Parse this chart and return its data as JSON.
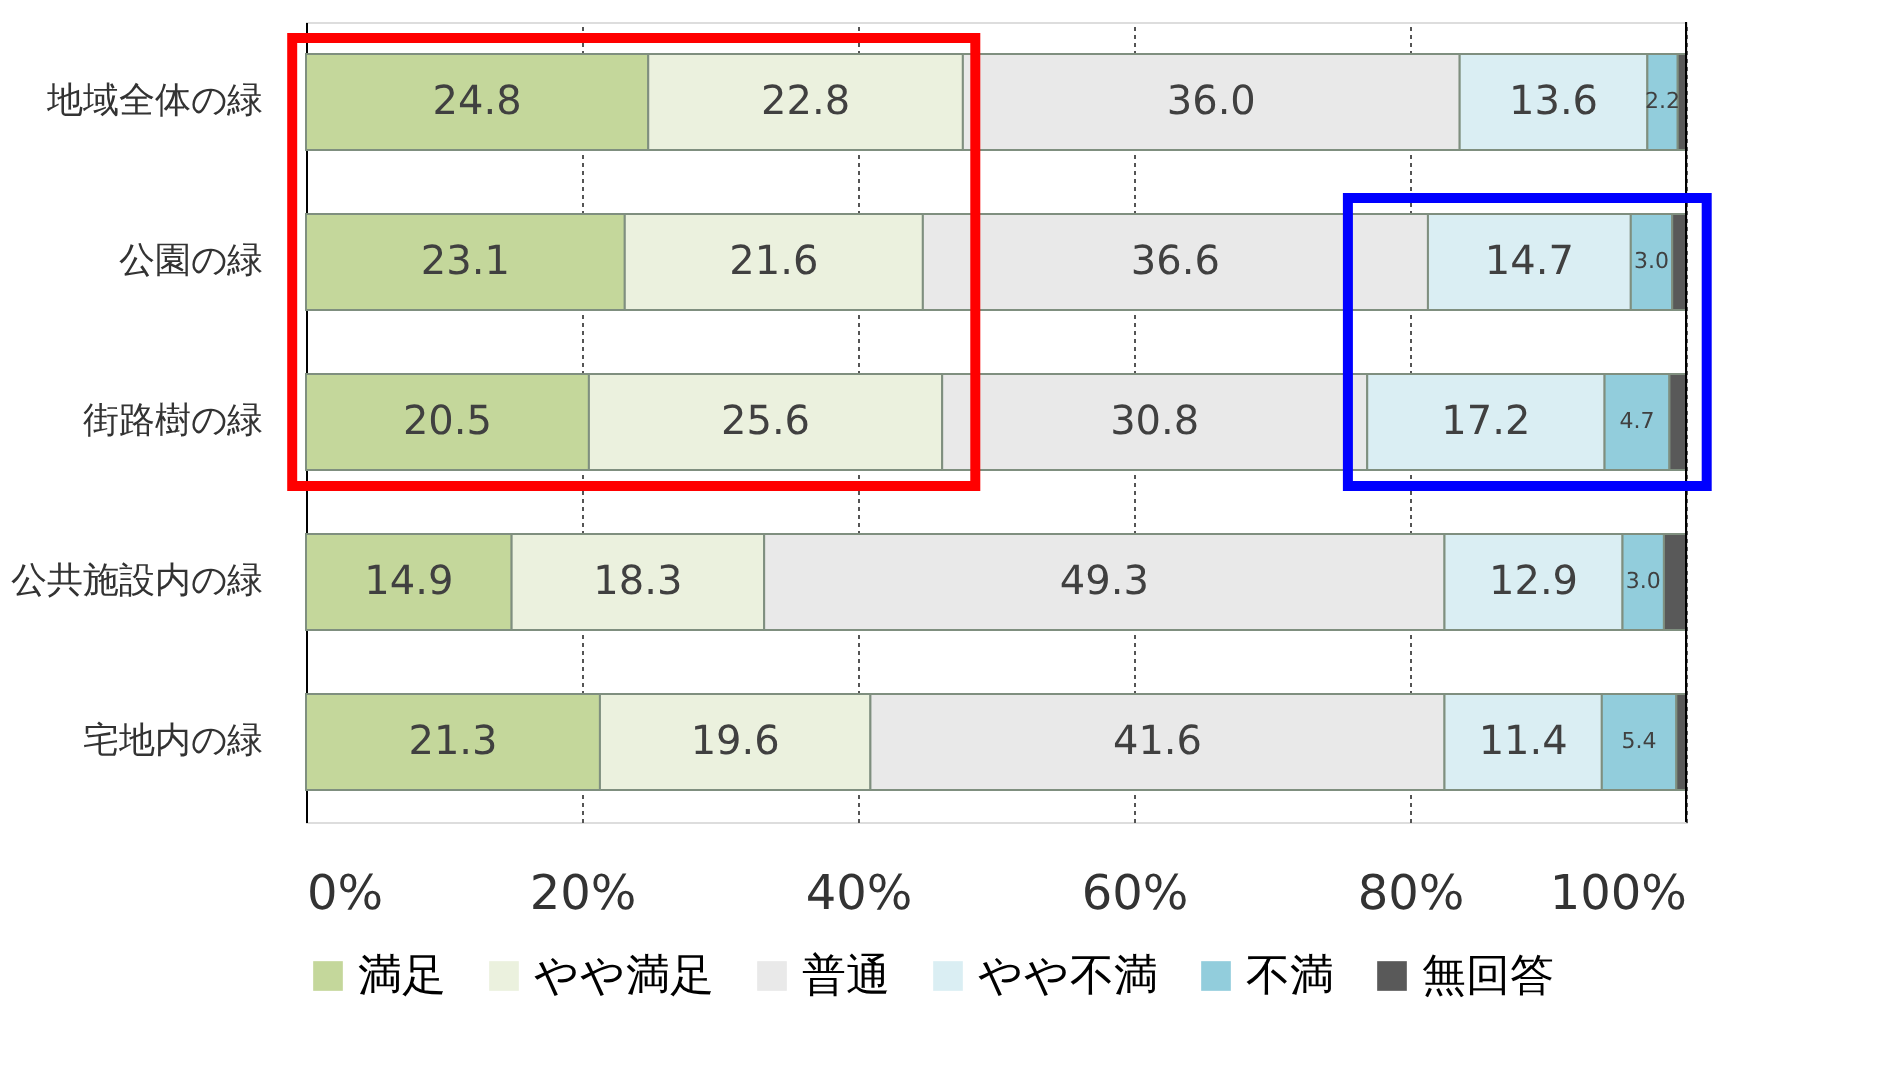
{
  "chart_data": {
    "type": "bar",
    "orientation": "horizontal",
    "stacked": true,
    "categories": [
      "地域全体の緑",
      "公園の緑",
      "街路樹の緑",
      "公共施設内の緑",
      "宅地内の緑"
    ],
    "series": [
      {
        "name": "満足",
        "color": "#c4d79b",
        "values": [
          24.8,
          23.1,
          20.5,
          14.9,
          21.3
        ],
        "value_labels": [
          "24.8",
          "23.1",
          "20.5",
          "14.9",
          "21.3"
        ]
      },
      {
        "name": "やや満足",
        "color": "#ebf1de",
        "values": [
          22.8,
          21.6,
          25.6,
          18.3,
          19.6
        ],
        "value_labels": [
          "22.8",
          "21.6",
          "25.6",
          "18.3",
          "19.6"
        ]
      },
      {
        "name": "普通",
        "color": "#e9e9e9",
        "values": [
          36.0,
          36.6,
          30.8,
          49.3,
          41.6
        ],
        "value_labels": [
          "36.0",
          "36.6",
          "30.8",
          "49.3",
          "41.6"
        ]
      },
      {
        "name": "やや不満",
        "color": "#daeef3",
        "values": [
          13.6,
          14.7,
          17.2,
          12.9,
          11.4
        ],
        "value_labels": [
          "13.6",
          "14.7",
          "17.2",
          "12.9",
          "11.4"
        ]
      },
      {
        "name": "不満",
        "color": "#92cddc",
        "values": [
          2.2,
          3.0,
          4.7,
          3.0,
          5.4
        ],
        "value_labels": [
          "2.2",
          "3.0",
          "4.7",
          "3.0",
          "5.4"
        ]
      },
      {
        "name": "無回答",
        "color": "#595959",
        "values": [
          0.6,
          1.0,
          1.2,
          1.6,
          0.7
        ],
        "value_labels": [
          null,
          null,
          null,
          null,
          null
        ]
      }
    ],
    "xlim": [
      0,
      100
    ],
    "xticks": [
      {
        "value": 0,
        "label": "0%"
      },
      {
        "value": 20,
        "label": "20%"
      },
      {
        "value": 40,
        "label": "40%"
      },
      {
        "value": 60,
        "label": "60%"
      },
      {
        "value": 80,
        "label": "80%"
      },
      {
        "value": 100,
        "label": "100%"
      }
    ],
    "grid": "x",
    "legend": "bottom"
  }
}
